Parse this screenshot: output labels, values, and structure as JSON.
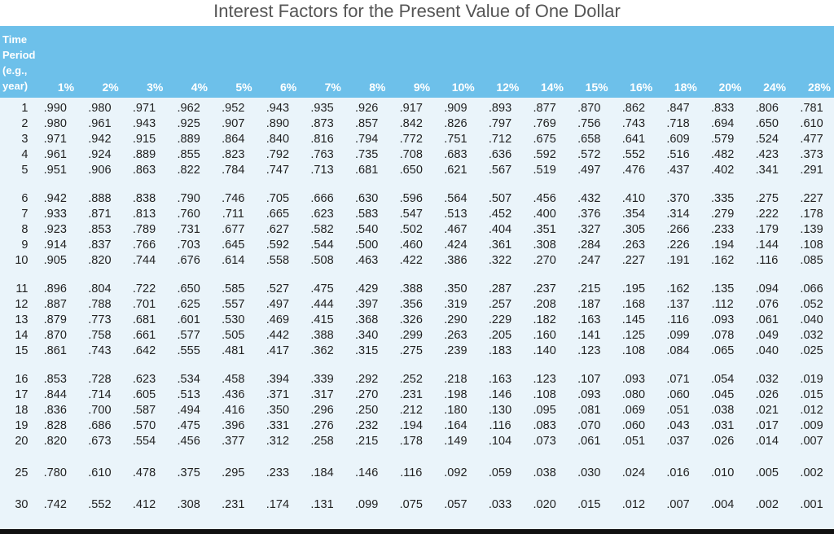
{
  "title": "Interest Factors for the Present Value of One Dollar",
  "table": {
    "period_header": [
      "Time",
      "Period",
      "(e.g.,",
      "year)"
    ],
    "rates": [
      "1%",
      "2%",
      "3%",
      "4%",
      "5%",
      "6%",
      "7%",
      "8%",
      "9%",
      "10%",
      "12%",
      "14%",
      "15%",
      "16%",
      "18%",
      "20%",
      "24%",
      "28%"
    ],
    "groups": [
      [
        {
          "period": "1",
          "values": [
            ".990",
            ".980",
            ".971",
            ".962",
            ".952",
            ".943",
            ".935",
            ".926",
            ".917",
            ".909",
            ".893",
            ".877",
            ".870",
            ".862",
            ".847",
            ".833",
            ".806",
            ".781"
          ]
        },
        {
          "period": "2",
          "values": [
            ".980",
            ".961",
            ".943",
            ".925",
            ".907",
            ".890",
            ".873",
            ".857",
            ".842",
            ".826",
            ".797",
            ".769",
            ".756",
            ".743",
            ".718",
            ".694",
            ".650",
            ".610"
          ]
        },
        {
          "period": "3",
          "values": [
            ".971",
            ".942",
            ".915",
            ".889",
            ".864",
            ".840",
            ".816",
            ".794",
            ".772",
            ".751",
            ".712",
            ".675",
            ".658",
            ".641",
            ".609",
            ".579",
            ".524",
            ".477"
          ]
        },
        {
          "period": "4",
          "values": [
            ".961",
            ".924",
            ".889",
            ".855",
            ".823",
            ".792",
            ".763",
            ".735",
            ".708",
            ".683",
            ".636",
            ".592",
            ".572",
            ".552",
            ".516",
            ".482",
            ".423",
            ".373"
          ]
        },
        {
          "period": "5",
          "values": [
            ".951",
            ".906",
            ".863",
            ".822",
            ".784",
            ".747",
            ".713",
            ".681",
            ".650",
            ".621",
            ".567",
            ".519",
            ".497",
            ".476",
            ".437",
            ".402",
            ".341",
            ".291"
          ]
        }
      ],
      [
        {
          "period": "6",
          "values": [
            ".942",
            ".888",
            ".838",
            ".790",
            ".746",
            ".705",
            ".666",
            ".630",
            ".596",
            ".564",
            ".507",
            ".456",
            ".432",
            ".410",
            ".370",
            ".335",
            ".275",
            ".227"
          ]
        },
        {
          "period": "7",
          "values": [
            ".933",
            ".871",
            ".813",
            ".760",
            ".711",
            ".665",
            ".623",
            ".583",
            ".547",
            ".513",
            ".452",
            ".400",
            ".376",
            ".354",
            ".314",
            ".279",
            ".222",
            ".178"
          ]
        },
        {
          "period": "8",
          "values": [
            ".923",
            ".853",
            ".789",
            ".731",
            ".677",
            ".627",
            ".582",
            ".540",
            ".502",
            ".467",
            ".404",
            ".351",
            ".327",
            ".305",
            ".266",
            ".233",
            ".179",
            ".139"
          ]
        },
        {
          "period": "9",
          "values": [
            ".914",
            ".837",
            ".766",
            ".703",
            ".645",
            ".592",
            ".544",
            ".500",
            ".460",
            ".424",
            ".361",
            ".308",
            ".284",
            ".263",
            ".226",
            ".194",
            ".144",
            ".108"
          ]
        },
        {
          "period": "10",
          "values": [
            ".905",
            ".820",
            ".744",
            ".676",
            ".614",
            ".558",
            ".508",
            ".463",
            ".422",
            ".386",
            ".322",
            ".270",
            ".247",
            ".227",
            ".191",
            ".162",
            ".116",
            ".085"
          ]
        }
      ],
      [
        {
          "period": "11",
          "values": [
            ".896",
            ".804",
            ".722",
            ".650",
            ".585",
            ".527",
            ".475",
            ".429",
            ".388",
            ".350",
            ".287",
            ".237",
            ".215",
            ".195",
            ".162",
            ".135",
            ".094",
            ".066"
          ]
        },
        {
          "period": "12",
          "values": [
            ".887",
            ".788",
            ".701",
            ".625",
            ".557",
            ".497",
            ".444",
            ".397",
            ".356",
            ".319",
            ".257",
            ".208",
            ".187",
            ".168",
            ".137",
            ".112",
            ".076",
            ".052"
          ]
        },
        {
          "period": "13",
          "values": [
            ".879",
            ".773",
            ".681",
            ".601",
            ".530",
            ".469",
            ".415",
            ".368",
            ".326",
            ".290",
            ".229",
            ".182",
            ".163",
            ".145",
            ".116",
            ".093",
            ".061",
            ".040"
          ]
        },
        {
          "period": "14",
          "values": [
            ".870",
            ".758",
            ".661",
            ".577",
            ".505",
            ".442",
            ".388",
            ".340",
            ".299",
            ".263",
            ".205",
            ".160",
            ".141",
            ".125",
            ".099",
            ".078",
            ".049",
            ".032"
          ]
        },
        {
          "period": "15",
          "values": [
            ".861",
            ".743",
            ".642",
            ".555",
            ".481",
            ".417",
            ".362",
            ".315",
            ".275",
            ".239",
            ".183",
            ".140",
            ".123",
            ".108",
            ".084",
            ".065",
            ".040",
            ".025"
          ]
        }
      ],
      [
        {
          "period": "16",
          "values": [
            ".853",
            ".728",
            ".623",
            ".534",
            ".458",
            ".394",
            ".339",
            ".292",
            ".252",
            ".218",
            ".163",
            ".123",
            ".107",
            ".093",
            ".071",
            ".054",
            ".032",
            ".019"
          ]
        },
        {
          "period": "17",
          "values": [
            ".844",
            ".714",
            ".605",
            ".513",
            ".436",
            ".371",
            ".317",
            ".270",
            ".231",
            ".198",
            ".146",
            ".108",
            ".093",
            ".080",
            ".060",
            ".045",
            ".026",
            ".015"
          ]
        },
        {
          "period": "18",
          "values": [
            ".836",
            ".700",
            ".587",
            ".494",
            ".416",
            ".350",
            ".296",
            ".250",
            ".212",
            ".180",
            ".130",
            ".095",
            ".081",
            ".069",
            ".051",
            ".038",
            ".021",
            ".012"
          ]
        },
        {
          "period": "19",
          "values": [
            ".828",
            ".686",
            ".570",
            ".475",
            ".396",
            ".331",
            ".276",
            ".232",
            ".194",
            ".164",
            ".116",
            ".083",
            ".070",
            ".060",
            ".043",
            ".031",
            ".017",
            ".009"
          ]
        },
        {
          "period": "20",
          "values": [
            ".820",
            ".673",
            ".554",
            ".456",
            ".377",
            ".312",
            ".258",
            ".215",
            ".178",
            ".149",
            ".104",
            ".073",
            ".061",
            ".051",
            ".037",
            ".026",
            ".014",
            ".007"
          ]
        }
      ],
      [
        {
          "period": "25",
          "values": [
            ".780",
            ".610",
            ".478",
            ".375",
            ".295",
            ".233",
            ".184",
            ".146",
            ".116",
            ".092",
            ".059",
            ".038",
            ".030",
            ".024",
            ".016",
            ".010",
            ".005",
            ".002"
          ]
        }
      ],
      [
        {
          "period": "30",
          "values": [
            ".742",
            ".552",
            ".412",
            ".308",
            ".231",
            ".174",
            ".131",
            ".099",
            ".075",
            ".057",
            ".033",
            ".020",
            ".015",
            ".012",
            ".007",
            ".004",
            ".002",
            ".001"
          ]
        }
      ]
    ]
  },
  "colors": {
    "header_bg": "#6dc0ea",
    "body_bg": "#eaf4fa",
    "title_text": "#555555"
  }
}
